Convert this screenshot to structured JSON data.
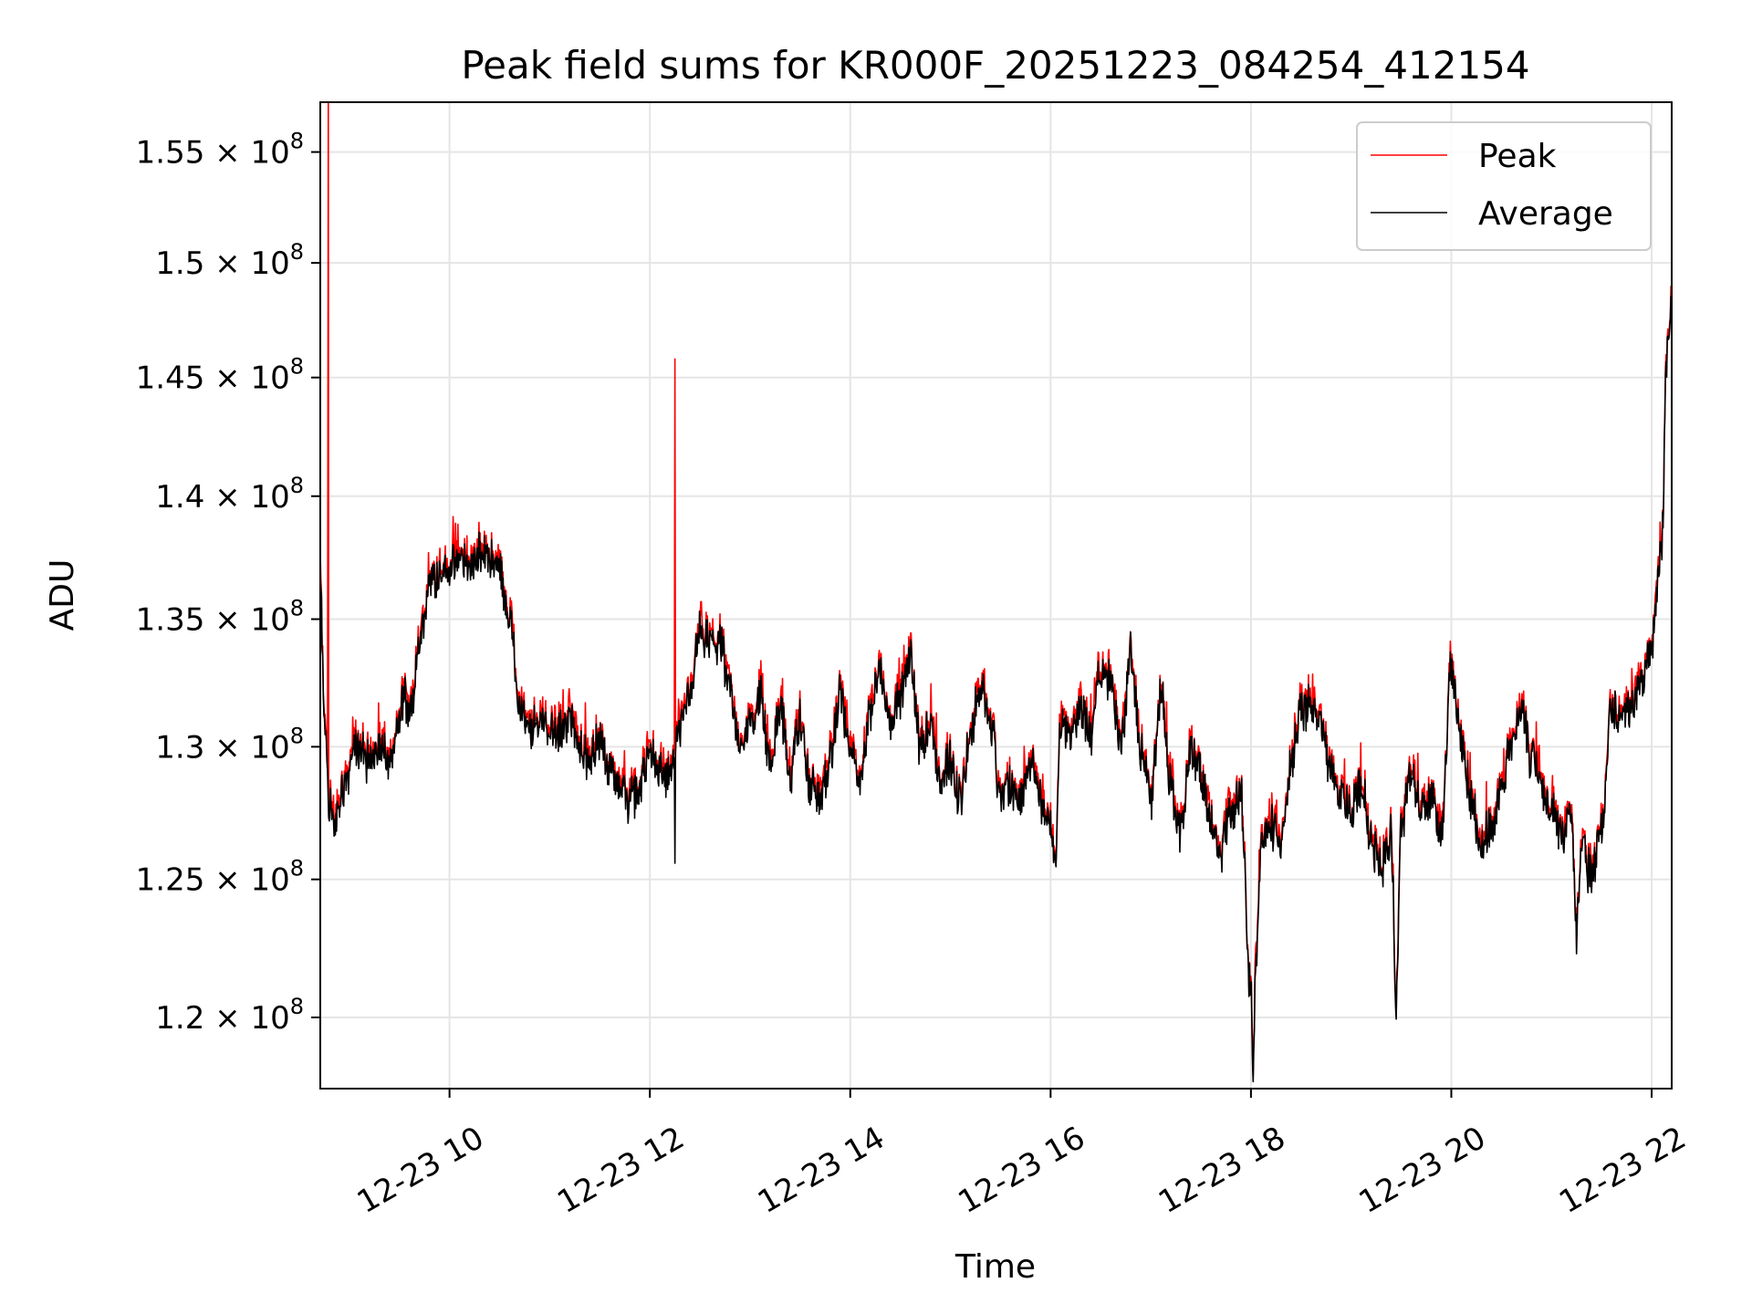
{
  "chart_data": {
    "type": "line",
    "title": "Peak field sums for KR000F_20251223_084254_412154",
    "xlabel": "Time",
    "ylabel": "ADU",
    "yscale": "log",
    "ylim": [
      117500000,
      157300000
    ],
    "xlim": [
      8.71,
      22.2
    ],
    "grid": true,
    "legend_position": "top-right",
    "x_ticks": [
      {
        "value": 10,
        "label": "12-23 10"
      },
      {
        "value": 12,
        "label": "12-23 12"
      },
      {
        "value": 14,
        "label": "12-23 14"
      },
      {
        "value": 16,
        "label": "12-23 16"
      },
      {
        "value": 18,
        "label": "12-23 18"
      },
      {
        "value": 20,
        "label": "12-23 20"
      },
      {
        "value": 22,
        "label": "12-23 22"
      }
    ],
    "y_ticks": [
      {
        "value": 120000000,
        "mantissa": "1.2",
        "exponent": "8"
      },
      {
        "value": 125000000,
        "mantissa": "1.25",
        "exponent": "8"
      },
      {
        "value": 130000000,
        "mantissa": "1.3",
        "exponent": "8"
      },
      {
        "value": 135000000,
        "mantissa": "1.35",
        "exponent": "8"
      },
      {
        "value": 140000000,
        "mantissa": "1.4",
        "exponent": "8"
      },
      {
        "value": 145000000,
        "mantissa": "1.45",
        "exponent": "8"
      },
      {
        "value": 150000000,
        "mantissa": "1.5",
        "exponent": "8"
      },
      {
        "value": 155000000,
        "mantissa": "1.55",
        "exponent": "8"
      }
    ],
    "y_tick_separator": "×",
    "y_tick_base": "10",
    "series": [
      {
        "name": "Peak",
        "color": "#ff0000"
      },
      {
        "name": "Average",
        "color": "#000000"
      }
    ],
    "anchors": [
      [
        8.71,
        136.5
      ],
      [
        8.75,
        131.0
      ],
      [
        8.8,
        128.0
      ],
      [
        8.85,
        127.0
      ],
      [
        8.95,
        128.5
      ],
      [
        9.05,
        130.0
      ],
      [
        9.2,
        129.5
      ],
      [
        9.3,
        130.2
      ],
      [
        9.4,
        129.2
      ],
      [
        9.5,
        131.0
      ],
      [
        9.55,
        132.0
      ],
      [
        9.6,
        131.0
      ],
      [
        9.7,
        134.0
      ],
      [
        9.8,
        136.5
      ],
      [
        9.9,
        136.8
      ],
      [
        10.0,
        137.0
      ],
      [
        10.1,
        137.5
      ],
      [
        10.2,
        137.0
      ],
      [
        10.3,
        137.6
      ],
      [
        10.4,
        137.5
      ],
      [
        10.5,
        137.0
      ],
      [
        10.6,
        135.0
      ],
      [
        10.7,
        131.5
      ],
      [
        10.8,
        130.5
      ],
      [
        10.9,
        131.0
      ],
      [
        11.0,
        130.8
      ],
      [
        11.1,
        130.5
      ],
      [
        11.2,
        131.0
      ],
      [
        11.3,
        130.2
      ],
      [
        11.4,
        129.5
      ],
      [
        11.5,
        130.3
      ],
      [
        11.6,
        129.0
      ],
      [
        11.7,
        128.5
      ],
      [
        11.8,
        128.0
      ],
      [
        11.9,
        128.3
      ],
      [
        12.0,
        130.0
      ],
      [
        12.1,
        129.0
      ],
      [
        12.2,
        128.8
      ],
      [
        12.3,
        130.5
      ],
      [
        12.4,
        132.0
      ],
      [
        12.5,
        134.5
      ],
      [
        12.6,
        134.0
      ],
      [
        12.7,
        134.0
      ],
      [
        12.8,
        132.0
      ],
      [
        12.9,
        130.0
      ],
      [
        13.0,
        131.0
      ],
      [
        13.1,
        132.0
      ],
      [
        13.2,
        129.5
      ],
      [
        13.3,
        131.5
      ],
      [
        13.4,
        129.0
      ],
      [
        13.5,
        131.0
      ],
      [
        13.6,
        128.5
      ],
      [
        13.7,
        128.0
      ],
      [
        13.8,
        129.5
      ],
      [
        13.9,
        132.0
      ],
      [
        14.0,
        130.0
      ],
      [
        14.1,
        128.5
      ],
      [
        14.2,
        131.5
      ],
      [
        14.3,
        133.0
      ],
      [
        14.4,
        131.0
      ],
      [
        14.5,
        132.0
      ],
      [
        14.6,
        133.5
      ],
      [
        14.7,
        130.0
      ],
      [
        14.8,
        131.0
      ],
      [
        14.9,
        128.5
      ],
      [
        15.0,
        129.5
      ],
      [
        15.1,
        128.0
      ],
      [
        15.2,
        130.5
      ],
      [
        15.3,
        132.5
      ],
      [
        15.4,
        131.0
      ],
      [
        15.5,
        128.0
      ],
      [
        15.6,
        128.5
      ],
      [
        15.7,
        128.0
      ],
      [
        15.8,
        129.5
      ],
      [
        15.9,
        128.0
      ],
      [
        16.0,
        127.0
      ],
      [
        16.05,
        125.5
      ],
      [
        16.1,
        131.0
      ],
      [
        16.2,
        130.5
      ],
      [
        16.3,
        131.5
      ],
      [
        16.4,
        130.5
      ],
      [
        16.5,
        133.0
      ],
      [
        16.6,
        132.5
      ],
      [
        16.7,
        130.0
      ],
      [
        16.8,
        133.5
      ],
      [
        16.9,
        130.0
      ],
      [
        17.0,
        128.0
      ],
      [
        17.1,
        132.0
      ],
      [
        17.2,
        128.5
      ],
      [
        17.3,
        126.5
      ],
      [
        17.4,
        130.0
      ],
      [
        17.5,
        129.0
      ],
      [
        17.6,
        127.0
      ],
      [
        17.7,
        126.0
      ],
      [
        17.8,
        127.5
      ],
      [
        17.9,
        128.0
      ],
      [
        18.0,
        121.0
      ],
      [
        18.02,
        117.8
      ],
      [
        18.05,
        122.0
      ],
      [
        18.1,
        126.0
      ],
      [
        18.2,
        127.0
      ],
      [
        18.3,
        126.5
      ],
      [
        18.4,
        129.5
      ],
      [
        18.5,
        131.5
      ],
      [
        18.6,
        131.5
      ],
      [
        18.7,
        131.0
      ],
      [
        18.8,
        129.0
      ],
      [
        18.9,
        128.0
      ],
      [
        19.0,
        127.5
      ],
      [
        19.1,
        128.5
      ],
      [
        19.2,
        126.5
      ],
      [
        19.3,
        125.5
      ],
      [
        19.4,
        126.5
      ],
      [
        19.45,
        120.5
      ],
      [
        19.5,
        127.0
      ],
      [
        19.6,
        129.0
      ],
      [
        19.7,
        127.5
      ],
      [
        19.8,
        128.0
      ],
      [
        19.9,
        126.5
      ],
      [
        20.0,
        133.0
      ],
      [
        20.1,
        130.0
      ],
      [
        20.2,
        128.0
      ],
      [
        20.3,
        126.5
      ],
      [
        20.4,
        127.0
      ],
      [
        20.5,
        128.5
      ],
      [
        20.6,
        130.0
      ],
      [
        20.7,
        131.5
      ],
      [
        20.8,
        129.5
      ],
      [
        20.9,
        128.5
      ],
      [
        21.0,
        127.5
      ],
      [
        21.1,
        126.5
      ],
      [
        21.2,
        127.5
      ],
      [
        21.25,
        123.0
      ],
      [
        21.3,
        126.5
      ],
      [
        21.4,
        125.0
      ],
      [
        21.5,
        127.0
      ],
      [
        21.6,
        131.5
      ],
      [
        21.7,
        131.0
      ],
      [
        21.8,
        131.5
      ],
      [
        21.9,
        132.5
      ],
      [
        22.0,
        134.0
      ],
      [
        22.1,
        138.0
      ],
      [
        22.15,
        146.0
      ],
      [
        22.2,
        148.5
      ]
    ],
    "peak_spikes": [
      [
        8.79,
        157.3
      ],
      [
        12.25,
        145.8
      ]
    ],
    "average_dips": [
      [
        12.25,
        125.6
      ]
    ]
  }
}
